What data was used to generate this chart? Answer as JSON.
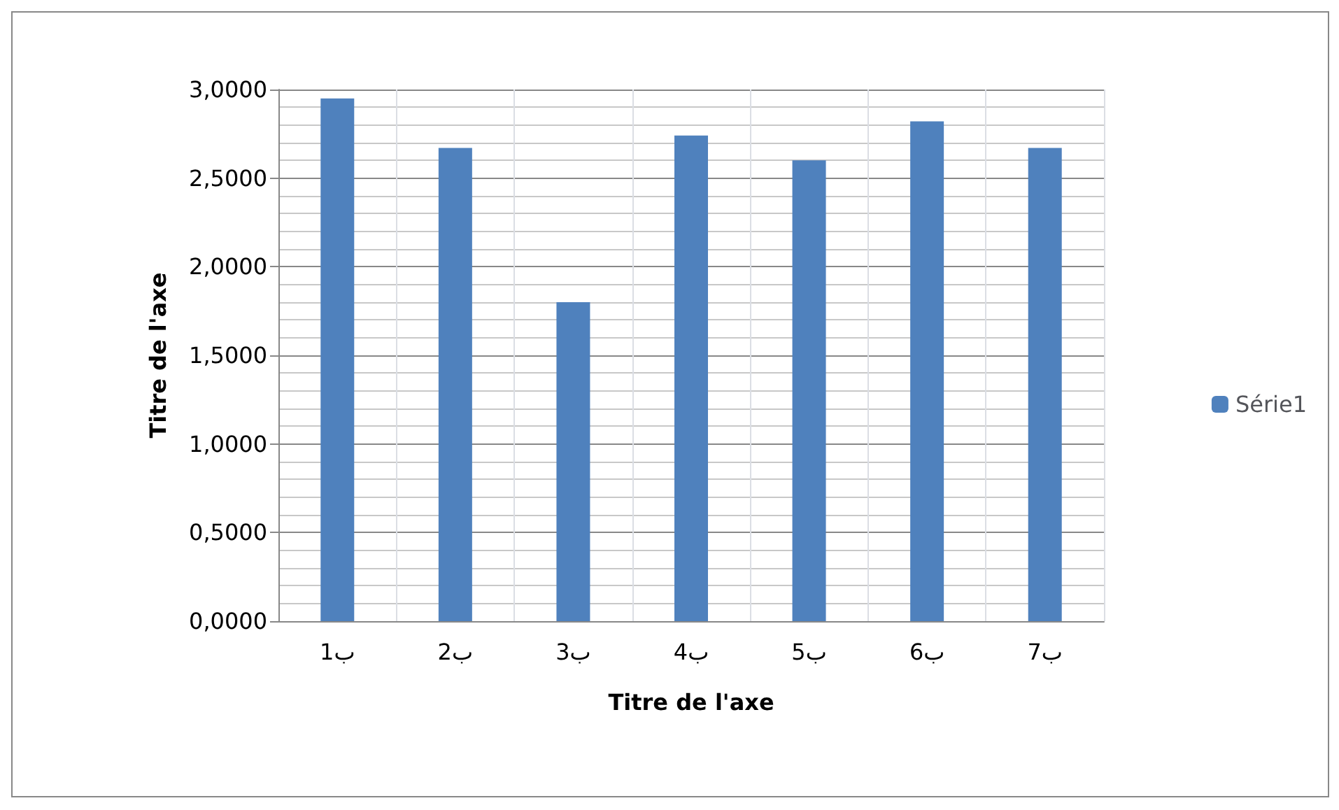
{
  "chart_data": {
    "type": "bar",
    "xlabel": "Titre de l'axe",
    "ylabel": "Titre de l'axe",
    "categories": [
      "1ب",
      "2ب",
      "3ب",
      "4ب",
      "5ب",
      "6ب",
      "7ب"
    ],
    "series": [
      {
        "name": "Série1",
        "color": "#4f81bd",
        "values": [
          2.95,
          2.67,
          1.8,
          2.74,
          2.6,
          2.82,
          2.67
        ]
      }
    ],
    "ylim": [
      0,
      3
    ],
    "yticks": [
      {
        "value": 0,
        "label": "0,0000"
      },
      {
        "value": 0.5,
        "label": "0,5000"
      },
      {
        "value": 1,
        "label": "1,0000"
      },
      {
        "value": 1.5,
        "label": "1,5000"
      },
      {
        "value": 2,
        "label": "2,0000"
      },
      {
        "value": 2.5,
        "label": "2,5000"
      },
      {
        "value": 3,
        "label": "3,0000"
      }
    ],
    "grid": true,
    "legend": "right"
  }
}
